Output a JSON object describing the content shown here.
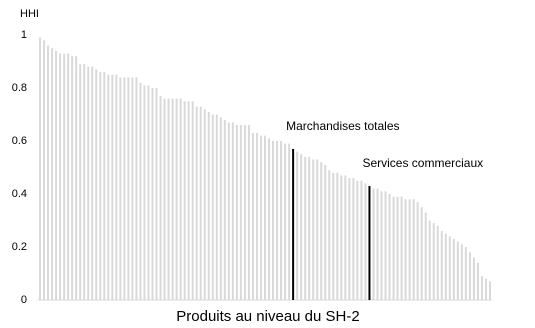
{
  "chart_data": {
    "type": "bar",
    "y_label": "HHI",
    "x_label": "Produits au niveau du SH-2",
    "categories": [
      null,
      null,
      null,
      null,
      null,
      null,
      null,
      null,
      null,
      null,
      null,
      null,
      null,
      null,
      null,
      null,
      null,
      null,
      null,
      null,
      null,
      null,
      null,
      null,
      null,
      null,
      null,
      null,
      null,
      null,
      null,
      null,
      null,
      null,
      null,
      null,
      null,
      null,
      null,
      null,
      null,
      null,
      null,
      null,
      null,
      null,
      null,
      null,
      null,
      null,
      null,
      null,
      null,
      null,
      null,
      null,
      null,
      null,
      null,
      null,
      null,
      null,
      null,
      null,
      null,
      null,
      null,
      null,
      null,
      null,
      null,
      null,
      null,
      null,
      null,
      null,
      null,
      null,
      null,
      null,
      null,
      null,
      null,
      null,
      null,
      null,
      null,
      null,
      null,
      null,
      null,
      null,
      null,
      null,
      null,
      null,
      null,
      null,
      null,
      null,
      null,
      null,
      null,
      null,
      null,
      null,
      null,
      null,
      null,
      null,
      null,
      null,
      null
    ],
    "values": [
      0.99,
      0.98,
      0.96,
      0.95,
      0.94,
      0.93,
      0.93,
      0.93,
      0.92,
      0.92,
      0.89,
      0.89,
      0.88,
      0.88,
      0.87,
      0.86,
      0.86,
      0.85,
      0.85,
      0.85,
      0.84,
      0.84,
      0.84,
      0.84,
      0.84,
      0.82,
      0.81,
      0.81,
      0.8,
      0.8,
      0.77,
      0.76,
      0.76,
      0.76,
      0.76,
      0.76,
      0.75,
      0.75,
      0.75,
      0.73,
      0.73,
      0.72,
      0.71,
      0.7,
      0.7,
      0.69,
      0.68,
      0.67,
      0.67,
      0.66,
      0.66,
      0.66,
      0.66,
      0.63,
      0.63,
      0.62,
      0.62,
      0.61,
      0.6,
      0.6,
      0.6,
      0.59,
      0.59,
      0.57,
      0.56,
      0.55,
      0.54,
      0.54,
      0.53,
      0.53,
      0.52,
      0.51,
      0.49,
      0.48,
      0.48,
      0.47,
      0.47,
      0.46,
      0.46,
      0.45,
      0.45,
      0.44,
      0.43,
      0.42,
      0.42,
      0.41,
      0.41,
      0.4,
      0.39,
      0.39,
      0.39,
      0.38,
      0.38,
      0.38,
      0.37,
      0.35,
      0.33,
      0.3,
      0.29,
      0.28,
      0.26,
      0.25,
      0.24,
      0.23,
      0.22,
      0.21,
      0.2,
      0.18,
      0.16,
      0.14,
      0.09,
      0.08,
      0.07
    ],
    "colors": [
      "#d9d9d9",
      "#d9d9d9",
      "#d9d9d9",
      "#d9d9d9",
      "#d9d9d9",
      "#d9d9d9",
      "#d9d9d9",
      "#d9d9d9",
      "#d9d9d9",
      "#d9d9d9",
      "#d9d9d9",
      "#d9d9d9",
      "#d9d9d9",
      "#d9d9d9",
      "#d9d9d9",
      "#d9d9d9",
      "#d9d9d9",
      "#d9d9d9",
      "#d9d9d9",
      "#d9d9d9",
      "#d9d9d9",
      "#d9d9d9",
      "#d9d9d9",
      "#d9d9d9",
      "#d9d9d9",
      "#d9d9d9",
      "#d9d9d9",
      "#d9d9d9",
      "#d9d9d9",
      "#d9d9d9",
      "#d9d9d9",
      "#d9d9d9",
      "#d9d9d9",
      "#d9d9d9",
      "#d9d9d9",
      "#d9d9d9",
      "#d9d9d9",
      "#d9d9d9",
      "#d9d9d9",
      "#d9d9d9",
      "#d9d9d9",
      "#d9d9d9",
      "#d9d9d9",
      "#d9d9d9",
      "#d9d9d9",
      "#d9d9d9",
      "#d9d9d9",
      "#d9d9d9",
      "#d9d9d9",
      "#d9d9d9",
      "#d9d9d9",
      "#d9d9d9",
      "#d9d9d9",
      "#d9d9d9",
      "#d9d9d9",
      "#d9d9d9",
      "#d9d9d9",
      "#d9d9d9",
      "#d9d9d9",
      "#d9d9d9",
      "#d9d9d9",
      "#d9d9d9",
      "#d9d9d9",
      "#000000",
      "#d9d9d9",
      "#d9d9d9",
      "#d9d9d9",
      "#d9d9d9",
      "#d9d9d9",
      "#d9d9d9",
      "#d9d9d9",
      "#d9d9d9",
      "#d9d9d9",
      "#d9d9d9",
      "#d9d9d9",
      "#d9d9d9",
      "#d9d9d9",
      "#d9d9d9",
      "#d9d9d9",
      "#d9d9d9",
      "#d9d9d9",
      "#d9d9d9",
      "#000000",
      "#d9d9d9",
      "#d9d9d9",
      "#d9d9d9",
      "#d9d9d9",
      "#d9d9d9",
      "#d9d9d9",
      "#d9d9d9",
      "#d9d9d9",
      "#d9d9d9",
      "#d9d9d9",
      "#d9d9d9",
      "#d9d9d9",
      "#d9d9d9",
      "#d9d9d9",
      "#d9d9d9",
      "#d9d9d9",
      "#d9d9d9",
      "#d9d9d9",
      "#d9d9d9",
      "#d9d9d9",
      "#d9d9d9",
      "#d9d9d9",
      "#d9d9d9",
      "#d9d9d9",
      "#d9d9d9",
      "#d9d9d9",
      "#d9d9d9",
      "#d9d9d9",
      "#d9d9d9",
      "#d9d9d9"
    ],
    "annotations": [
      {
        "text": "Marchandises totales"
      },
      {
        "text": "Services commerciaux"
      }
    ],
    "ylim": [
      0,
      1
    ],
    "yticks": [
      0,
      0.2,
      0.4,
      0.6,
      0.8,
      1
    ],
    "grid": false
  }
}
